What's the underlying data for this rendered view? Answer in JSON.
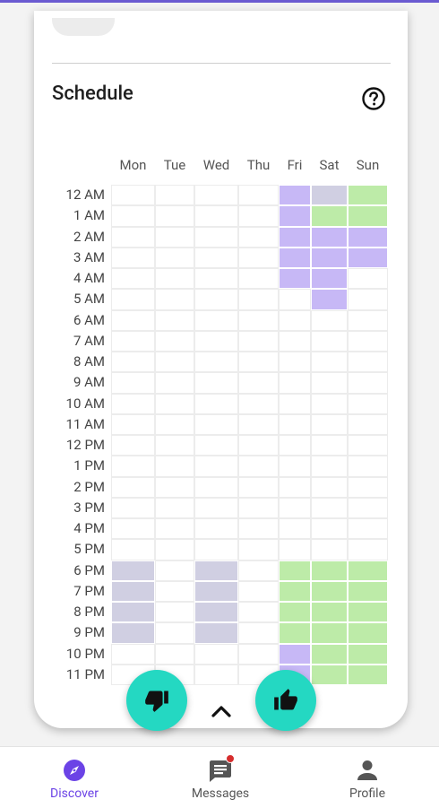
{
  "schedule": {
    "title": "Schedule",
    "days": [
      "Mon",
      "Tue",
      "Wed",
      "Thu",
      "Fri",
      "Sat",
      "Sun"
    ],
    "times": [
      "12 AM",
      "1 AM",
      "2 AM",
      "3 AM",
      "4 AM",
      "5 AM",
      "6 AM",
      "7 AM",
      "8 AM",
      "9 AM",
      "10 AM",
      "11 AM",
      "12 PM",
      "1 PM",
      "2 PM",
      "3 PM",
      "4 PM",
      "5 PM",
      "6 PM",
      "7 PM",
      "8 PM",
      "9 PM",
      "10 PM",
      "11 PM"
    ],
    "legend_colors": {
      "0": "#ffffff",
      "1": "#c7b8f6",
      "2": "#bdeba8",
      "3": "#d0cfe2"
    },
    "cells": [
      [
        0,
        0,
        0,
        0,
        1,
        3,
        2
      ],
      [
        0,
        0,
        0,
        0,
        1,
        2,
        2
      ],
      [
        0,
        0,
        0,
        0,
        1,
        1,
        1
      ],
      [
        0,
        0,
        0,
        0,
        1,
        1,
        1
      ],
      [
        0,
        0,
        0,
        0,
        1,
        1,
        0
      ],
      [
        0,
        0,
        0,
        0,
        0,
        1,
        0
      ],
      [
        0,
        0,
        0,
        0,
        0,
        0,
        0
      ],
      [
        0,
        0,
        0,
        0,
        0,
        0,
        0
      ],
      [
        0,
        0,
        0,
        0,
        0,
        0,
        0
      ],
      [
        0,
        0,
        0,
        0,
        0,
        0,
        0
      ],
      [
        0,
        0,
        0,
        0,
        0,
        0,
        0
      ],
      [
        0,
        0,
        0,
        0,
        0,
        0,
        0
      ],
      [
        0,
        0,
        0,
        0,
        0,
        0,
        0
      ],
      [
        0,
        0,
        0,
        0,
        0,
        0,
        0
      ],
      [
        0,
        0,
        0,
        0,
        0,
        0,
        0
      ],
      [
        0,
        0,
        0,
        0,
        0,
        0,
        0
      ],
      [
        0,
        0,
        0,
        0,
        0,
        0,
        0
      ],
      [
        0,
        0,
        0,
        0,
        0,
        0,
        0
      ],
      [
        3,
        0,
        3,
        0,
        2,
        2,
        2
      ],
      [
        3,
        0,
        3,
        0,
        2,
        2,
        2
      ],
      [
        3,
        0,
        3,
        0,
        2,
        2,
        2
      ],
      [
        3,
        0,
        3,
        0,
        2,
        2,
        2
      ],
      [
        0,
        0,
        0,
        0,
        1,
        2,
        2
      ],
      [
        0,
        0,
        0,
        0,
        1,
        2,
        2
      ]
    ]
  },
  "icons": {
    "help": "help-circle-icon",
    "dislike": "thumbs-down-icon",
    "like": "thumbs-up-icon",
    "expand": "chevron-up-icon"
  },
  "nav": {
    "items": [
      {
        "label": "Discover",
        "icon": "compass-icon",
        "active": true
      },
      {
        "label": "Messages",
        "icon": "message-icon",
        "badge": true
      },
      {
        "label": "Profile",
        "icon": "person-icon"
      }
    ]
  },
  "colors": {
    "accent": "#6b43e6",
    "fab": "#24d8c2"
  }
}
